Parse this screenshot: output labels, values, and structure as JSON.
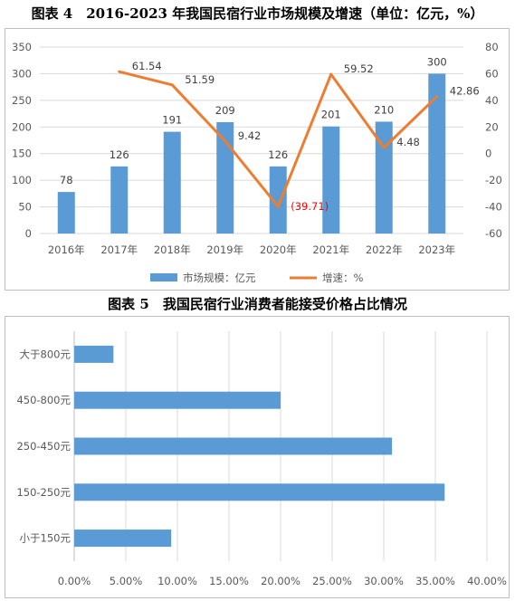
{
  "figure4": {
    "title": "图表 4　2016-2023 年我国民宿行业市场规模及增速（单位：亿元，%）"
  },
  "figure5": {
    "title": "图表 5　我国民宿行业消费者能接受价格占比情况"
  },
  "colors": {
    "bar": "#5b9bd5",
    "line": "#ed7d31",
    "negative_label": "#ff0000",
    "grid": "#d9d9d9",
    "text": "#595959"
  },
  "chart_data": [
    {
      "type": "bar+line",
      "categories": [
        "2016年",
        "2017年",
        "2018年",
        "2019年",
        "2020年",
        "2021年",
        "2022年",
        "2023年"
      ],
      "series": [
        {
          "name": "市场规模：亿元",
          "type": "bar",
          "axis": "left",
          "values": [
            78,
            126,
            191,
            209,
            126,
            201,
            210,
            300
          ],
          "labels": [
            "78",
            "126",
            "191",
            "209",
            "126",
            "201",
            "210",
            "300"
          ]
        },
        {
          "name": "增速：%",
          "type": "line",
          "axis": "right",
          "values": [
            null,
            61.54,
            51.59,
            9.42,
            -39.71,
            59.52,
            4.48,
            42.86
          ],
          "labels": [
            "",
            "61.54",
            "51.59",
            "9.42",
            "(39.71)",
            "59.52",
            "4.48",
            "42.86"
          ]
        }
      ],
      "ylim_left": [
        0,
        350
      ],
      "yticks_left": [
        "0",
        "50",
        "100",
        "150",
        "200",
        "250",
        "300",
        "350"
      ],
      "ylim_right": [
        -60,
        80
      ],
      "yticks_right": [
        "-60",
        "-40",
        "-20",
        "0",
        "20",
        "40",
        "60",
        "80"
      ],
      "grid": true,
      "legend": "bottom"
    },
    {
      "type": "bar",
      "orientation": "horizontal",
      "categories": [
        "大于800元",
        "450-800元",
        "250-450元",
        "150-250元",
        "小于150元"
      ],
      "values": [
        3.8,
        20.0,
        30.8,
        35.9,
        9.4
      ],
      "xlim": [
        0,
        40
      ],
      "xticks": [
        "0.00%",
        "5.00%",
        "10.00%",
        "15.00%",
        "20.00%",
        "25.00%",
        "30.00%",
        "35.00%",
        "40.00%"
      ],
      "grid": true
    }
  ]
}
